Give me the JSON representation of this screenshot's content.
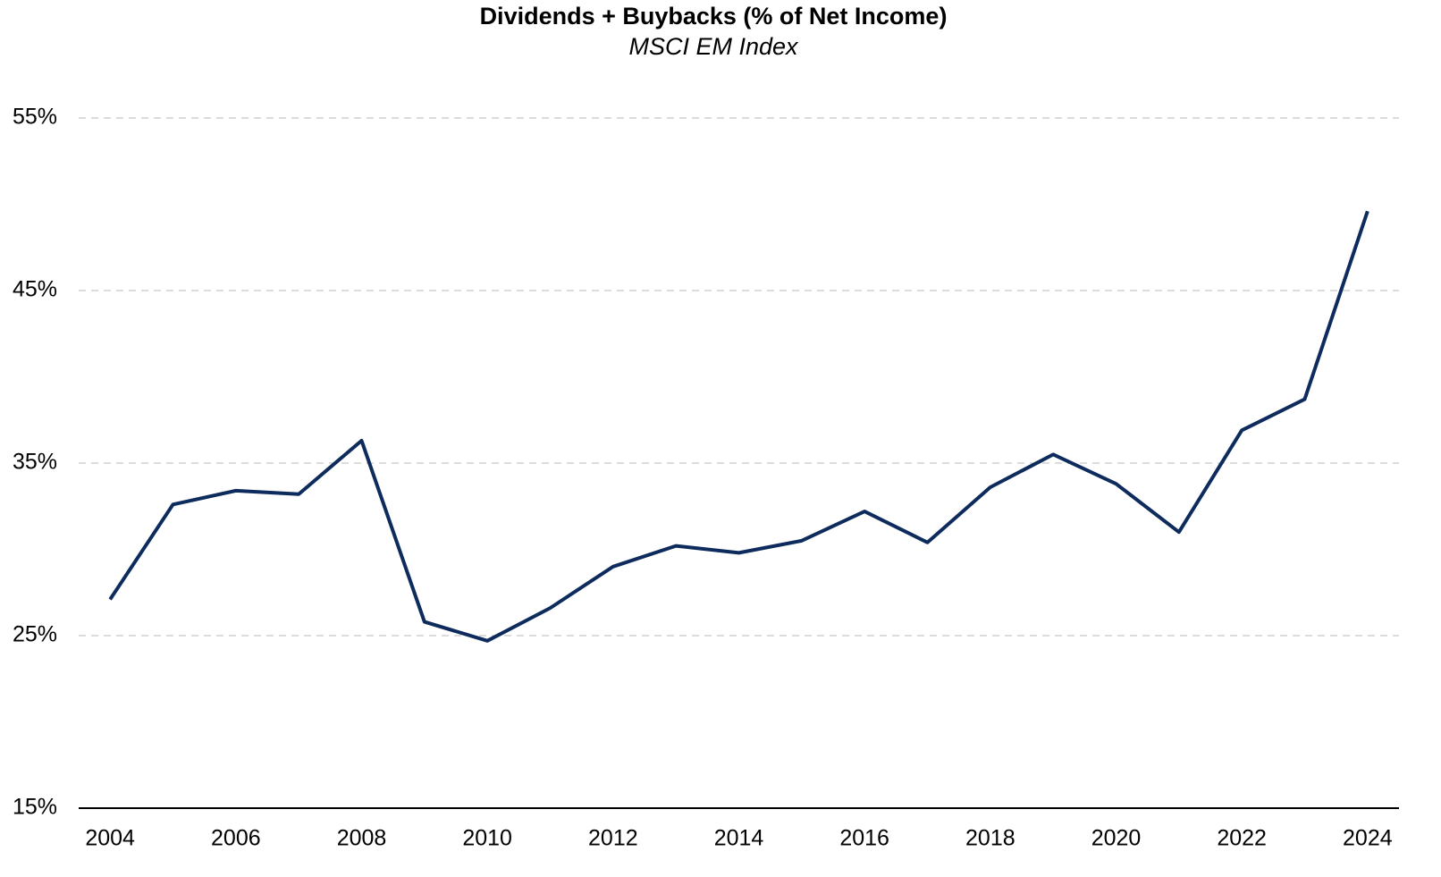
{
  "chart_data": {
    "type": "line",
    "title": "Dividends + Buybacks (% of Net Income)",
    "subtitle": "MSCI EM Index",
    "x": [
      2004,
      2005,
      2006,
      2007,
      2008,
      2009,
      2010,
      2011,
      2012,
      2013,
      2014,
      2015,
      2016,
      2017,
      2018,
      2019,
      2020,
      2021,
      2022,
      2023,
      2024
    ],
    "series": [
      {
        "name": "Dividends + Buybacks",
        "color": "#0d2b5c",
        "values": [
          27.1,
          32.6,
          33.4,
          33.2,
          36.3,
          25.8,
          24.7,
          26.6,
          29.0,
          30.2,
          29.8,
          30.5,
          32.2,
          30.4,
          33.6,
          35.5,
          33.8,
          31.0,
          36.9,
          38.7,
          49.6
        ]
      }
    ],
    "xlim": [
      2003.5,
      2024.5
    ],
    "xticks": [
      2004,
      2006,
      2008,
      2010,
      2012,
      2014,
      2016,
      2018,
      2020,
      2022,
      2024
    ],
    "ylim": [
      15,
      55
    ],
    "yticks": [
      {
        "value": 15,
        "label": "15%"
      },
      {
        "value": 25,
        "label": "25%"
      },
      {
        "value": 35,
        "label": "35%"
      },
      {
        "value": 45,
        "label": "45%"
      },
      {
        "value": 55,
        "label": "55%"
      }
    ],
    "grid": true
  }
}
